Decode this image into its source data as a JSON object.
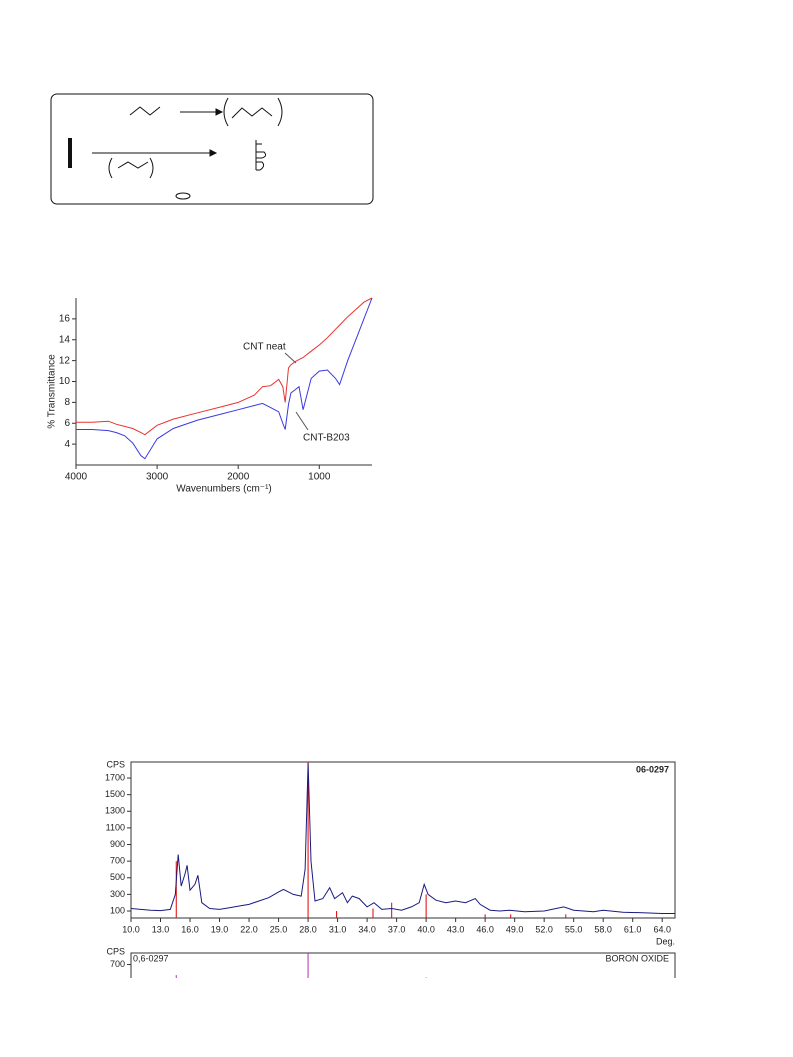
{
  "chart_data": [
    {
      "type": "line",
      "xlabel": "Wavenumbers (cm⁻¹)",
      "ylabel": "% Transmittance",
      "xlim": [
        4000,
        350
      ],
      "ylim": [
        2,
        18
      ],
      "xticks": [
        4000,
        3000,
        2000,
        1000
      ],
      "yticks": [
        4,
        6,
        8,
        10,
        12,
        14,
        16
      ],
      "x": [
        4000,
        3800,
        3600,
        3500,
        3400,
        3300,
        3200,
        3150,
        3000,
        2800,
        2500,
        2200,
        2000,
        1800,
        1700,
        1600,
        1500,
        1450,
        1420,
        1380,
        1350,
        1300,
        1250,
        1200,
        1100,
        1000,
        900,
        800,
        750,
        650,
        550,
        450,
        350
      ],
      "series": [
        {
          "name": "CNT neat",
          "color": "#e8322f",
          "values": [
            6.1,
            6.1,
            6.2,
            5.9,
            5.7,
            5.5,
            5.1,
            4.9,
            5.8,
            6.4,
            7.0,
            7.6,
            8.0,
            8.7,
            9.5,
            9.6,
            10.2,
            9.5,
            8.0,
            11.3,
            11.6,
            11.9,
            12.1,
            12.3,
            12.9,
            13.5,
            14.2,
            15.0,
            15.4,
            16.2,
            16.9,
            17.6,
            18.0
          ]
        },
        {
          "name": "CNT-B203",
          "color": "#3a3ae0",
          "values": [
            5.4,
            5.4,
            5.3,
            5.1,
            4.8,
            4.1,
            2.9,
            2.6,
            4.5,
            5.5,
            6.3,
            6.9,
            7.3,
            7.7,
            7.9,
            7.5,
            7.1,
            6.0,
            5.4,
            7.8,
            8.9,
            9.2,
            9.5,
            7.3,
            10.3,
            11.0,
            11.1,
            10.3,
            9.7,
            12.0,
            14.0,
            16.0,
            18.0
          ]
        }
      ]
    },
    {
      "type": "xrd",
      "ylabel": "CPS",
      "xlabel": "Deg.",
      "card": "06-0297",
      "card_color": "#e00000",
      "xlim": [
        10,
        65.3
      ],
      "ylim": [
        16,
        1893
      ],
      "xticks": [
        {
          "value": 10,
          "label": "10.0"
        },
        {
          "value": 13,
          "label": "13.0"
        },
        {
          "value": 16,
          "label": "16.0"
        },
        {
          "value": 19,
          "label": "19.0"
        },
        {
          "value": 22,
          "label": "22.0"
        },
        {
          "value": 25,
          "label": "25.0"
        },
        {
          "value": 28,
          "label": "28.0"
        },
        {
          "value": 31,
          "label": "31.0"
        },
        {
          "value": 34,
          "label": "34.0"
        },
        {
          "value": 37,
          "label": "37.0"
        },
        {
          "value": 40,
          "label": "40.0"
        },
        {
          "value": 43,
          "label": "43.0"
        },
        {
          "value": 46,
          "label": "46.0"
        },
        {
          "value": 49,
          "label": "49.0"
        },
        {
          "value": 52,
          "label": "52.0"
        },
        {
          "value": 55,
          "label": "55.0"
        },
        {
          "value": 58,
          "label": "58.0"
        },
        {
          "value": 61,
          "label": "61.0"
        },
        {
          "value": 64,
          "label": "64.0"
        }
      ],
      "yticks": [
        100,
        300,
        500,
        700,
        900,
        1100,
        1300,
        1500,
        1700
      ],
      "x": [
        10,
        11,
        12,
        13,
        14,
        14.5,
        14.8,
        15.1,
        15.5,
        15.7,
        16.0,
        16.5,
        16.8,
        17.2,
        18,
        19,
        20,
        21,
        22,
        23,
        24,
        25,
        25.5,
        26.5,
        27.3,
        27.7,
        28.0,
        28.3,
        28.7,
        29.5,
        30.2,
        30.7,
        31.5,
        32,
        32.5,
        33.2,
        34,
        34.7,
        35.5,
        36.5,
        37.5,
        38.5,
        39.3,
        39.8,
        40.2,
        41,
        42,
        43,
        44,
        45,
        45.5,
        46.5,
        47.5,
        48.5,
        50,
        52,
        54,
        55,
        57,
        58,
        60,
        62,
        64,
        65.3
      ],
      "series": [
        {
          "color": "#1a1a80",
          "values": [
            130,
            120,
            110,
            105,
            120,
            300,
            780,
            400,
            550,
            650,
            350,
            420,
            530,
            200,
            130,
            120,
            140,
            160,
            180,
            220,
            260,
            330,
            360,
            300,
            280,
            600,
            1880,
            700,
            220,
            250,
            380,
            250,
            320,
            200,
            280,
            250,
            150,
            200,
            120,
            130,
            110,
            150,
            200,
            420,
            300,
            230,
            200,
            220,
            200,
            250,
            180,
            110,
            100,
            110,
            90,
            100,
            150,
            110,
            90,
            110,
            85,
            80,
            70,
            70
          ]
        }
      ],
      "reference": {
        "color": "#e00000",
        "x": [
          14.6,
          28.0,
          30.9,
          34.6,
          36.5,
          40.0,
          46.0,
          48.6,
          54.2
        ],
        "values": [
          700,
          1893,
          100,
          130,
          200,
          300,
          60,
          60,
          60
        ]
      }
    },
    {
      "type": "stick",
      "ylabel": "CPS",
      "card": "0,6-0297",
      "name": "BORON OXIDE",
      "color": "#b030b0",
      "xlim": [
        10,
        65.3
      ],
      "ylim": [
        0,
        1300
      ],
      "yticks": [
        700
      ],
      "x": [
        14.6,
        28.0,
        40.0
      ],
      "values": [
        150,
        1300,
        30
      ]
    }
  ]
}
